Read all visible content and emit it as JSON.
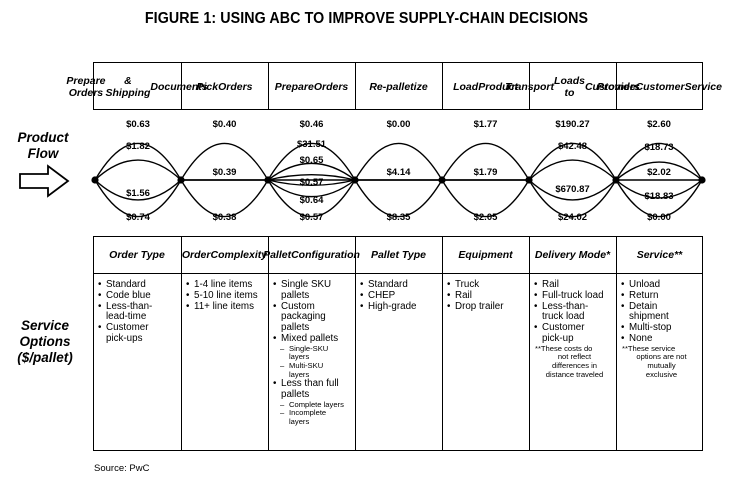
{
  "title": "FIGURE 1: USING ABC TO IMPROVE SUPPLY-CHAIN DECISIONS",
  "product_flow_label": [
    "Product",
    "Flow"
  ],
  "service_options_label": [
    "Service",
    "Options",
    "($/pallet)"
  ],
  "activities": [
    {
      "label": [
        "Prepare Orders",
        "& Shipping",
        "Documents"
      ],
      "costs": [
        "$0.63",
        "$1.82",
        "$1.56",
        "$0.74"
      ]
    },
    {
      "label": [
        "Pick",
        "Orders"
      ],
      "costs": [
        "$0.40",
        "$0.39",
        "$0.38"
      ]
    },
    {
      "label": [
        "Prepare",
        "Orders"
      ],
      "costs": [
        "$0.46",
        "$31.51",
        "$0.65",
        "$0.57",
        "$0.64",
        "$0.57"
      ]
    },
    {
      "label": [
        "Re-palletize"
      ],
      "costs": [
        "$0.00",
        "$4.14",
        "$8.35"
      ]
    },
    {
      "label": [
        "Load",
        "Product"
      ],
      "costs": [
        "$1.77",
        "$1.79",
        "$2.05"
      ]
    },
    {
      "label": [
        "Transport",
        "Loads to",
        "Customers"
      ],
      "costs": [
        "$190.27",
        "$42.48",
        "$670.87",
        "$24.02"
      ]
    },
    {
      "label": [
        "Provide",
        "Customer",
        "Service"
      ],
      "costs": [
        "$2.60",
        "$18.73",
        "$2.02",
        "$18.83",
        "$0.00"
      ]
    }
  ],
  "options": [
    {
      "header": [
        "Order Type"
      ],
      "items": [
        {
          "t": "Standard"
        },
        {
          "t": "Code blue"
        },
        {
          "t": "Less-than-"
        },
        {
          "t": "lead-time",
          "cont": true
        },
        {
          "t": "Customer"
        },
        {
          "t": "pick-ups",
          "cont": true
        }
      ]
    },
    {
      "header": [
        "Order",
        "Complexity"
      ],
      "items": [
        {
          "t": "1-4 line items"
        },
        {
          "t": "5-10 line items"
        },
        {
          "t": "11+ line items"
        }
      ]
    },
    {
      "header": [
        "Pallet",
        "Configuration"
      ],
      "items": [
        {
          "t": "Single SKU"
        },
        {
          "t": "pallets",
          "cont": true
        },
        {
          "t": "Custom"
        },
        {
          "t": "packaging",
          "cont": true
        },
        {
          "t": "pallets",
          "cont": true
        },
        {
          "t": "Mixed pallets"
        },
        {
          "t": "Single-SKU",
          "sub": true
        },
        {
          "t": "layers",
          "subcont": true
        },
        {
          "t": "Multi-SKU",
          "sub": true
        },
        {
          "t": "layers",
          "subcont": true
        },
        {
          "t": "Less than full"
        },
        {
          "t": "pallets",
          "cont": true
        },
        {
          "t": "Complete layers",
          "sub": true
        },
        {
          "t": "Incomplete",
          "sub": true
        },
        {
          "t": "layers",
          "subcont": true
        }
      ]
    },
    {
      "header": [
        "Pallet Type"
      ],
      "items": [
        {
          "t": "Standard"
        },
        {
          "t": "CHEP"
        },
        {
          "t": "High-grade"
        }
      ]
    },
    {
      "header": [
        "Equipment"
      ],
      "items": [
        {
          "t": "Truck"
        },
        {
          "t": "Rail"
        },
        {
          "t": "Drop trailer"
        }
      ]
    },
    {
      "header": [
        "Delivery Mode*"
      ],
      "items": [
        {
          "t": "Rail"
        },
        {
          "t": "Full-truck load"
        },
        {
          "t": "Less-than-"
        },
        {
          "t": "truck load",
          "cont": true
        },
        {
          "t": "Customer"
        },
        {
          "t": "pick-up",
          "cont": true
        },
        {
          "t": "**These costs do",
          "note": true
        },
        {
          "t": "not reflect",
          "note": true,
          "center": true
        },
        {
          "t": "differences in",
          "note": true,
          "center": true
        },
        {
          "t": "distance traveled",
          "note": true,
          "center": true
        }
      ]
    },
    {
      "header": [
        "Service**"
      ],
      "items": [
        {
          "t": "Unload"
        },
        {
          "t": "Return"
        },
        {
          "t": "Detain"
        },
        {
          "t": "shipment",
          "cont": true
        },
        {
          "t": "Multi-stop"
        },
        {
          "t": "None"
        },
        {
          "t": "**These service",
          "note": true
        },
        {
          "t": "options are not",
          "note": true,
          "center": true
        },
        {
          "t": "mutually",
          "note": true,
          "center": true
        },
        {
          "t": "exclusive",
          "note": true,
          "center": true
        }
      ]
    }
  ],
  "source": "Source: PwC",
  "icons": {
    "flow_arrow": "right-arrow-icon"
  }
}
